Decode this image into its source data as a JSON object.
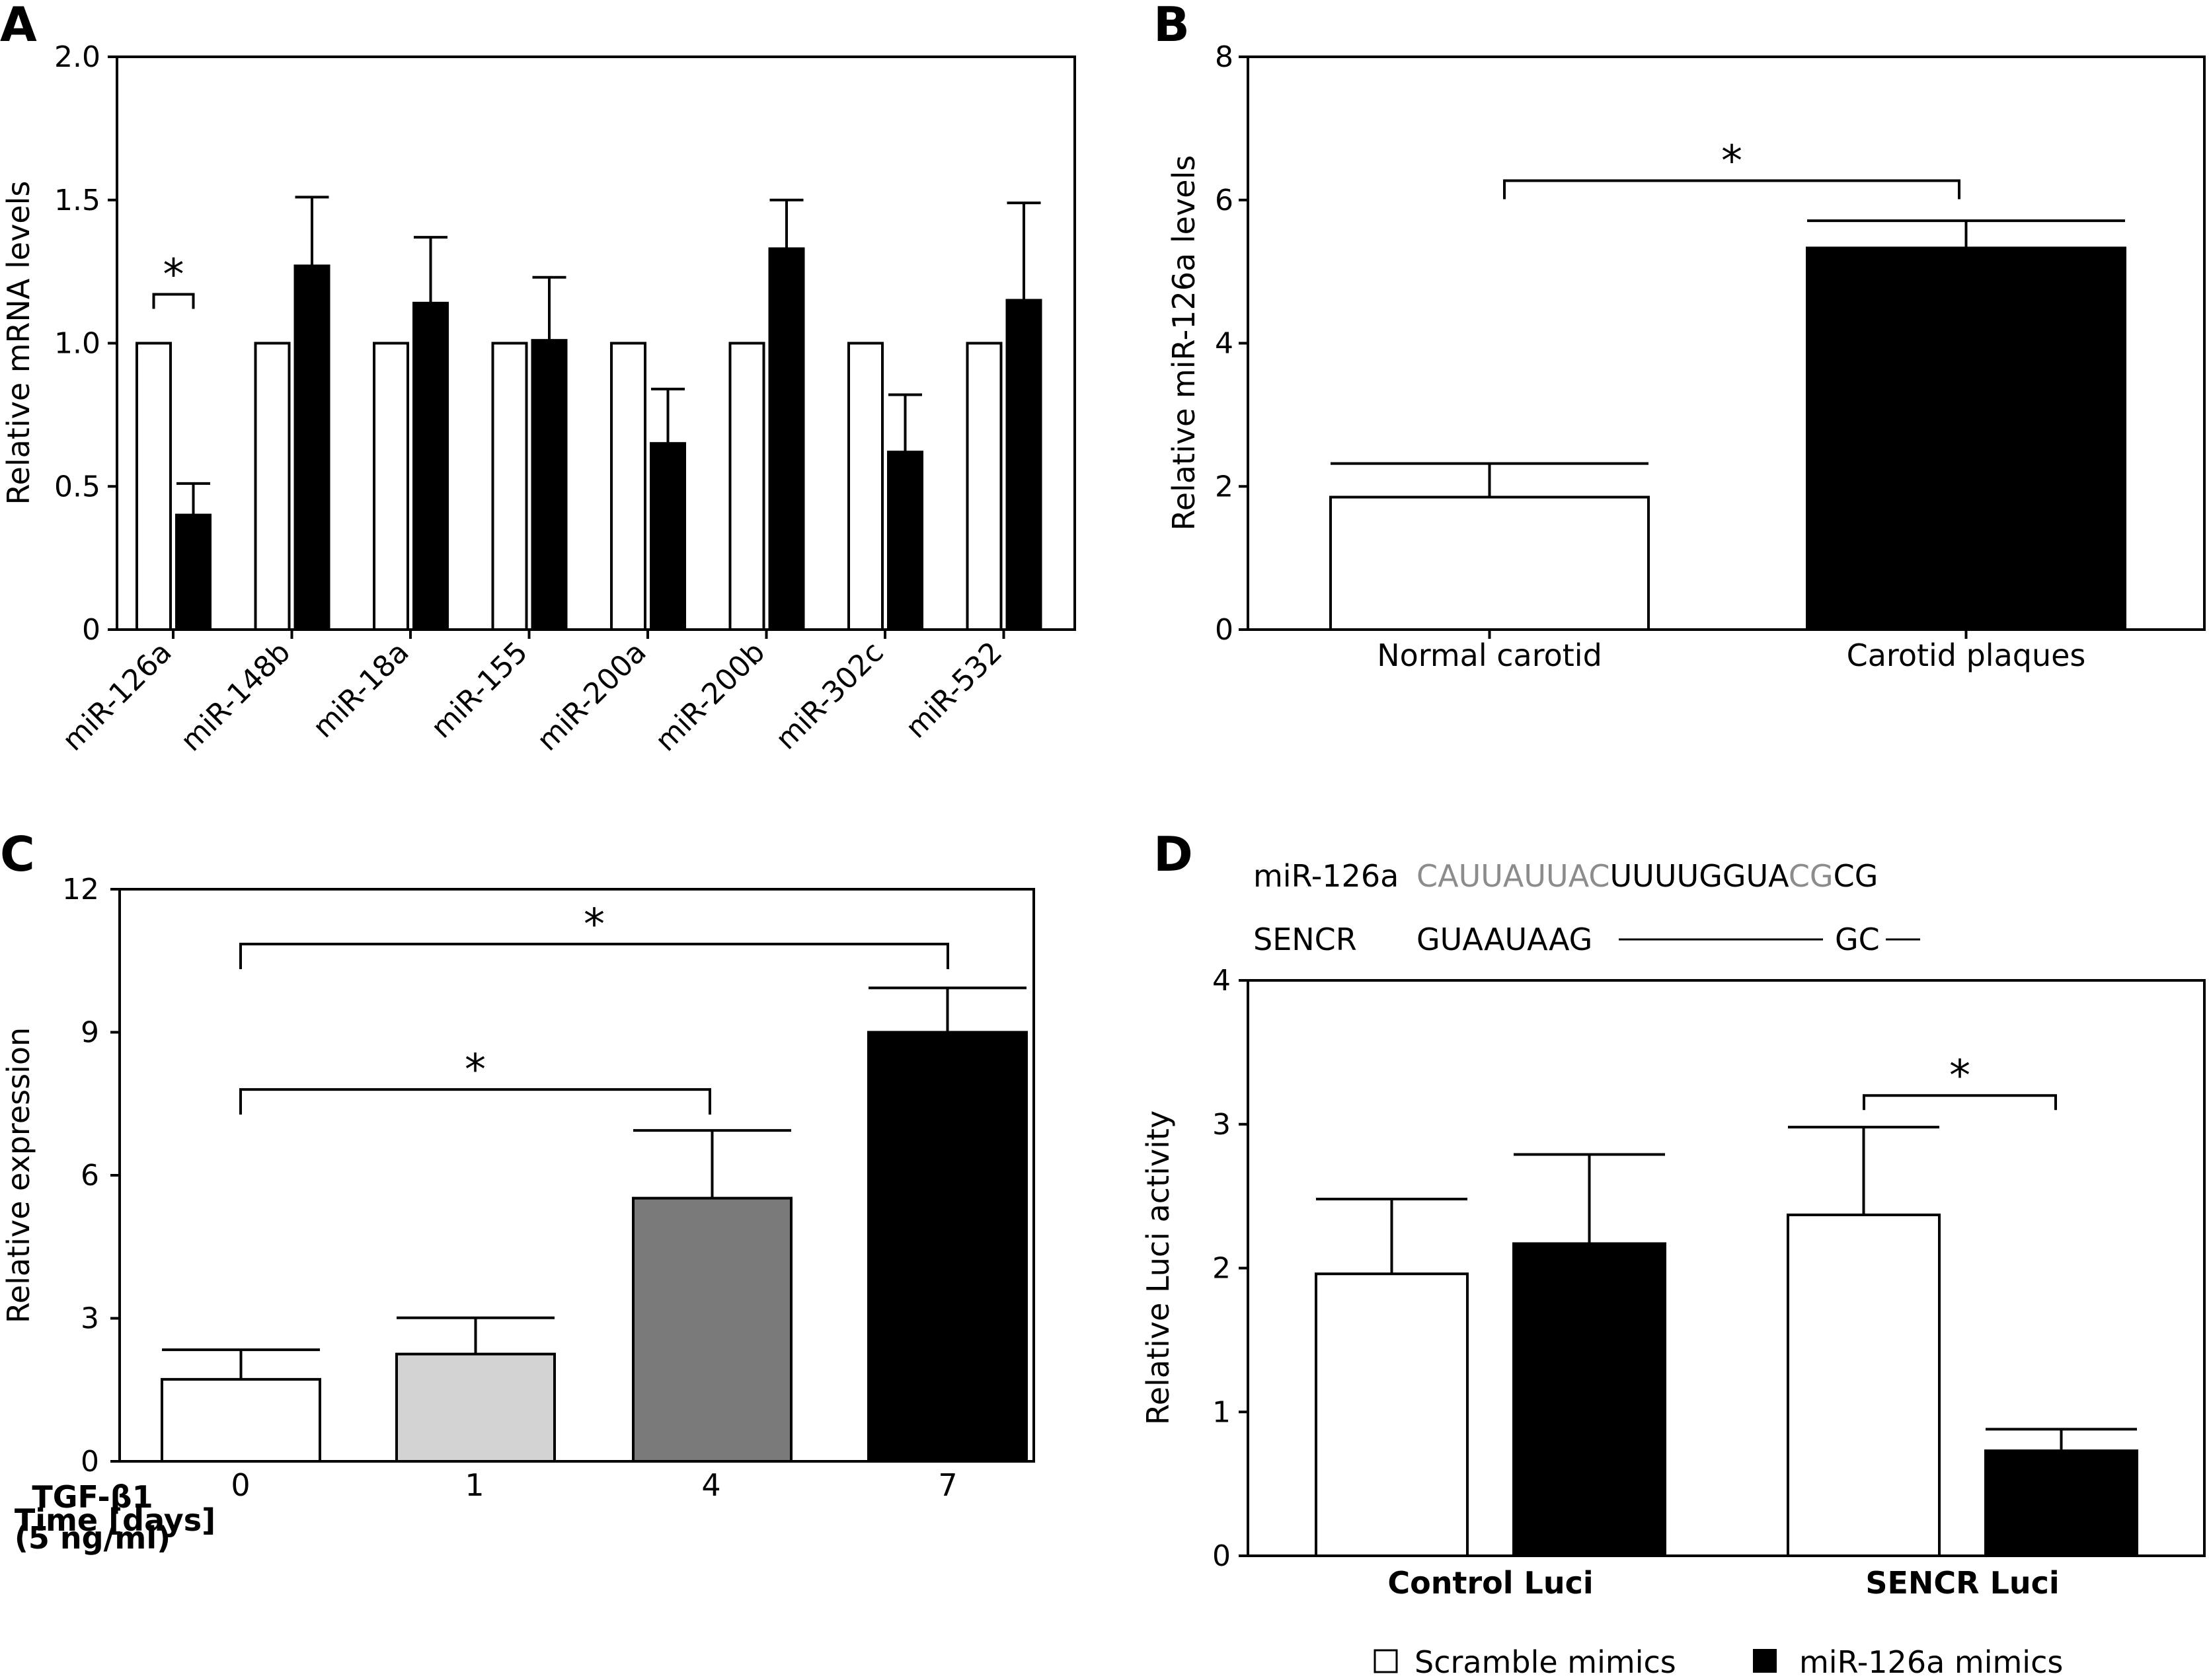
{
  "colors": {
    "white_bar": "#ffffff",
    "black_bar": "#000000",
    "light_gray_bar": "#d3d3d3",
    "dark_gray_bar": "#7a7a7a",
    "sequence_gray": "#8c8c8c"
  },
  "chart_data": [
    {
      "panel": "A",
      "type": "bar",
      "ylabel": "Relative mRNA levels",
      "ylim": [
        0,
        2.0
      ],
      "yticks": [
        "0",
        "0.5",
        "1.0",
        "1.5",
        "2.0"
      ],
      "categories": [
        "miR-126a",
        "miR-148b",
        "miR-18a",
        "miR-155",
        "miR-200a",
        "miR-200b",
        "miR-302c",
        "miR-532"
      ],
      "series": [
        {
          "color": "white",
          "values": [
            1.0,
            1.0,
            1.0,
            1.0,
            1.0,
            1.0,
            1.0,
            1.0
          ],
          "errors": [
            0,
            0,
            0,
            0,
            0,
            0,
            0,
            0
          ]
        },
        {
          "color": "black",
          "values": [
            0.4,
            1.27,
            1.14,
            1.01,
            0.65,
            1.33,
            0.62,
            1.15
          ],
          "errors": [
            0.11,
            0.24,
            0.23,
            0.22,
            0.19,
            0.17,
            0.2,
            0.34
          ]
        }
      ],
      "significance": [
        {
          "label": "*",
          "category": "miR-126a"
        }
      ]
    },
    {
      "panel": "B",
      "type": "bar",
      "ylabel": "Relative miR-126a levels",
      "ylim": [
        0,
        8
      ],
      "yticks": [
        "0",
        "2",
        "4",
        "6",
        "8"
      ],
      "categories": [
        "Normal carotid",
        "Carotid plaques"
      ],
      "values": [
        1.85,
        5.33
      ],
      "errors": [
        0.47,
        0.38
      ],
      "bar_colors": [
        "white",
        "black"
      ],
      "significance": [
        {
          "label": "*",
          "from": "Normal carotid",
          "to": "Carotid plaques"
        }
      ]
    },
    {
      "panel": "C",
      "type": "bar",
      "ylabel": "Relative expression",
      "xlabel": "Time [days]",
      "treatment_label": [
        "TGF-β1",
        "(5 ng/ml)"
      ],
      "ylim": [
        0,
        12
      ],
      "yticks": [
        "0",
        "3",
        "6",
        "9",
        "12"
      ],
      "categories": [
        "0",
        "1",
        "4",
        "7"
      ],
      "values": [
        1.72,
        2.25,
        5.52,
        9.0
      ],
      "errors": [
        0.62,
        0.76,
        1.42,
        0.93
      ],
      "bar_colors": [
        "white",
        "lightgray",
        "darkgray",
        "black"
      ],
      "significance": [
        {
          "label": "*",
          "from": "0",
          "to": "7"
        },
        {
          "label": "*",
          "from": "0",
          "to": "4"
        }
      ]
    },
    {
      "panel": "D",
      "type": "bar",
      "ylabel": "Relative Luci activity",
      "ylim": [
        0,
        4
      ],
      "yticks": [
        "0",
        "1",
        "2",
        "3",
        "4"
      ],
      "categories": [
        "Control Luci",
        "SENCR Luci"
      ],
      "series": [
        {
          "name": "Scramble mimics",
          "color": "white",
          "values": [
            1.96,
            2.37
          ],
          "errors": [
            0.52,
            0.61
          ]
        },
        {
          "name": "miR-126a mimics",
          "color": "black",
          "values": [
            2.17,
            0.73
          ],
          "errors": [
            0.62,
            0.15
          ]
        }
      ],
      "legend": "bottom",
      "significance": [
        {
          "label": "*",
          "category": "SENCR Luci"
        }
      ],
      "sequences": {
        "mir_label": "miR-126a",
        "mir_parts": [
          {
            "text": "CAUUAUUAC",
            "gray": true
          },
          {
            "text": "UUUUGGUA",
            "gray": false
          },
          {
            "text": "CG",
            "gray": true
          },
          {
            "text": "CG",
            "gray": false
          }
        ],
        "sencr_label": "SENCR",
        "sencr_part1": "GUAAUAAG",
        "sencr_part2": "GC"
      }
    }
  ]
}
